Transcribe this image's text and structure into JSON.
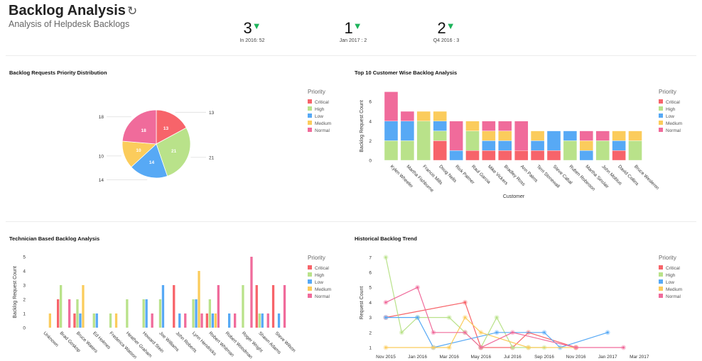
{
  "header": {
    "title": "Backlog Analysis",
    "subtitle": "Analysis of Helpdesk Backlogs",
    "refresh_icon": "refresh-icon"
  },
  "kpis": [
    {
      "value": "3",
      "trend": "down",
      "caption": "In 2016: 52"
    },
    {
      "value": "1",
      "trend": "down",
      "caption": "Jan 2017 : 2"
    },
    {
      "value": "2",
      "trend": "down",
      "caption": "Q4 2016 : 3"
    }
  ],
  "colors": {
    "Critical": "#f7646a",
    "High": "#b9e28a",
    "Low": "#57a9f5",
    "Medium": "#fbcc5c",
    "Normal": "#f06b9b",
    "trend_down": "#1db35b"
  },
  "panels": {
    "pie": "Backlog Requests Priority Distribution",
    "customer": "Top 10 Customer Wise Backlog Analysis",
    "technician": "Technician Based Backlog Analysis",
    "trend": "Historical Backlog Trend"
  },
  "chart_data": [
    {
      "type": "pie",
      "title": "Backlog Requests Priority Distribution",
      "legend_title": "Priority",
      "legend_position": "right",
      "categories": [
        "Critical",
        "High",
        "Low",
        "Medium",
        "Normal"
      ],
      "values": [
        13,
        21,
        14,
        10,
        18
      ]
    },
    {
      "type": "bar",
      "stacked": true,
      "title": "Top 10 Customer Wise Backlog Analysis",
      "xlabel": "Customer",
      "ylabel": "Backlog Request Count",
      "ylim": [
        0,
        7
      ],
      "yticks": [
        0,
        2,
        4,
        6
      ],
      "legend_title": "Priority",
      "legend_position": "right",
      "categories": [
        "Kylen Wheeler",
        "Martha Fishburne",
        "Francis Mills",
        "Doug Nelis",
        "Rick Palmer",
        "Raul Garcia",
        "Mike Vickers",
        "Bradley Ross",
        "Ann Palms",
        "Terri Stonewall",
        "Steve Cabal",
        "Ruben Robinson",
        "Martha Sinclair",
        "John Mobius",
        "David Collins",
        "Bruce Wesleron"
      ],
      "series": [
        {
          "name": "Critical",
          "values": [
            0,
            0,
            0,
            2,
            0,
            1,
            1,
            1,
            1,
            1,
            1,
            0,
            0,
            0,
            1,
            0
          ]
        },
        {
          "name": "High",
          "values": [
            2,
            2,
            4,
            1,
            0,
            2,
            0,
            0,
            0,
            0,
            0,
            2,
            0,
            2,
            0,
            2
          ]
        },
        {
          "name": "Low",
          "values": [
            2,
            2,
            0,
            1,
            1,
            0,
            1,
            1,
            0,
            1,
            2,
            1,
            1,
            0,
            1,
            0
          ]
        },
        {
          "name": "Medium",
          "values": [
            0,
            0,
            1,
            1,
            0,
            1,
            1,
            1,
            0,
            1,
            0,
            0,
            1,
            0,
            1,
            1
          ]
        },
        {
          "name": "Normal",
          "values": [
            3,
            1,
            0,
            0,
            3,
            0,
            1,
            1,
            3,
            0,
            0,
            0,
            1,
            1,
            0,
            0
          ]
        }
      ]
    },
    {
      "type": "bar",
      "stacked": false,
      "title": "Technician Based Backlog Analysis",
      "xlabel": "",
      "ylabel": "Backlog Request Count",
      "ylim": [
        0,
        5
      ],
      "yticks": [
        0,
        1,
        2,
        3,
        4,
        5
      ],
      "legend_title": "Priority",
      "legend_position": "right",
      "categories": [
        "Unknown",
        "Brad Goskop",
        "Bruce Waters",
        "Ed Holmes",
        "Frederica Watson",
        "Heather Graham",
        "Howard Stein",
        "Joe Williams",
        "John Roberts",
        "Lynn Hendricks",
        "Robert Whitman",
        "Robert Woodman",
        "Roger Wright",
        "Shawn Adams",
        "Steve Wilson"
      ],
      "series": [
        {
          "name": "Critical",
          "values": [
            0,
            2,
            1,
            0,
            0,
            0,
            0,
            0,
            3,
            0,
            1,
            0,
            0,
            3,
            3
          ]
        },
        {
          "name": "High",
          "values": [
            0,
            3,
            2,
            1,
            1,
            2,
            2,
            2,
            0,
            2,
            2,
            0,
            3,
            1,
            0
          ]
        },
        {
          "name": "Low",
          "values": [
            0,
            0,
            1,
            1,
            0,
            0,
            2,
            3,
            1,
            2,
            1,
            1,
            0,
            1,
            1
          ]
        },
        {
          "name": "Medium",
          "values": [
            1,
            0,
            3,
            0,
            1,
            0,
            0,
            0,
            0,
            4,
            1,
            0,
            0,
            0,
            0
          ]
        },
        {
          "name": "Normal",
          "values": [
            0,
            2,
            0,
            0,
            0,
            0,
            1,
            0,
            1,
            1,
            3,
            1,
            5,
            1,
            3
          ]
        }
      ]
    },
    {
      "type": "line",
      "title": "Historical Backlog Trend",
      "xlabel": "",
      "ylabel": "Request Count",
      "ylim": [
        1,
        7
      ],
      "yticks": [
        1,
        2,
        3,
        4,
        5,
        6,
        7
      ],
      "legend_title": "Priority",
      "legend_position": "right",
      "xticks": [
        "Nov 2015",
        "Jan 2016",
        "Mar 2016",
        "May 2016",
        "Jul 2016",
        "Sep 2016",
        "Nov 2016",
        "Jan 2017",
        "Mar 2017"
      ],
      "x_note": "x values are month offsets from Nov 2015",
      "series": [
        {
          "name": "Critical",
          "points": [
            [
              0,
              3
            ],
            [
              5,
              4
            ],
            [
              6,
              1
            ],
            [
              8,
              1
            ],
            [
              9,
              2
            ],
            [
              12,
              1
            ]
          ]
        },
        {
          "name": "High",
          "points": [
            [
              0,
              7
            ],
            [
              1,
              2
            ],
            [
              2,
              3
            ],
            [
              4,
              3
            ],
            [
              5,
              2
            ],
            [
              6,
              1
            ],
            [
              7,
              3
            ],
            [
              8,
              1
            ],
            [
              9,
              1
            ],
            [
              10,
              1
            ]
          ]
        },
        {
          "name": "Low",
          "points": [
            [
              0,
              3
            ],
            [
              2,
              3
            ],
            [
              3,
              1
            ],
            [
              7,
              2
            ],
            [
              10,
              2
            ],
            [
              11,
              1
            ],
            [
              14,
              2
            ]
          ]
        },
        {
          "name": "Medium",
          "points": [
            [
              0,
              1
            ],
            [
              3,
              1
            ],
            [
              4,
              1
            ],
            [
              5,
              3
            ],
            [
              6,
              2
            ],
            [
              9,
              1
            ],
            [
              12,
              1
            ]
          ]
        },
        {
          "name": "Normal",
          "points": [
            [
              0,
              4
            ],
            [
              2,
              5
            ],
            [
              3,
              2
            ],
            [
              5,
              2
            ],
            [
              6,
              1
            ],
            [
              8,
              2
            ],
            [
              12,
              1
            ],
            [
              15,
              1
            ]
          ]
        }
      ]
    }
  ]
}
